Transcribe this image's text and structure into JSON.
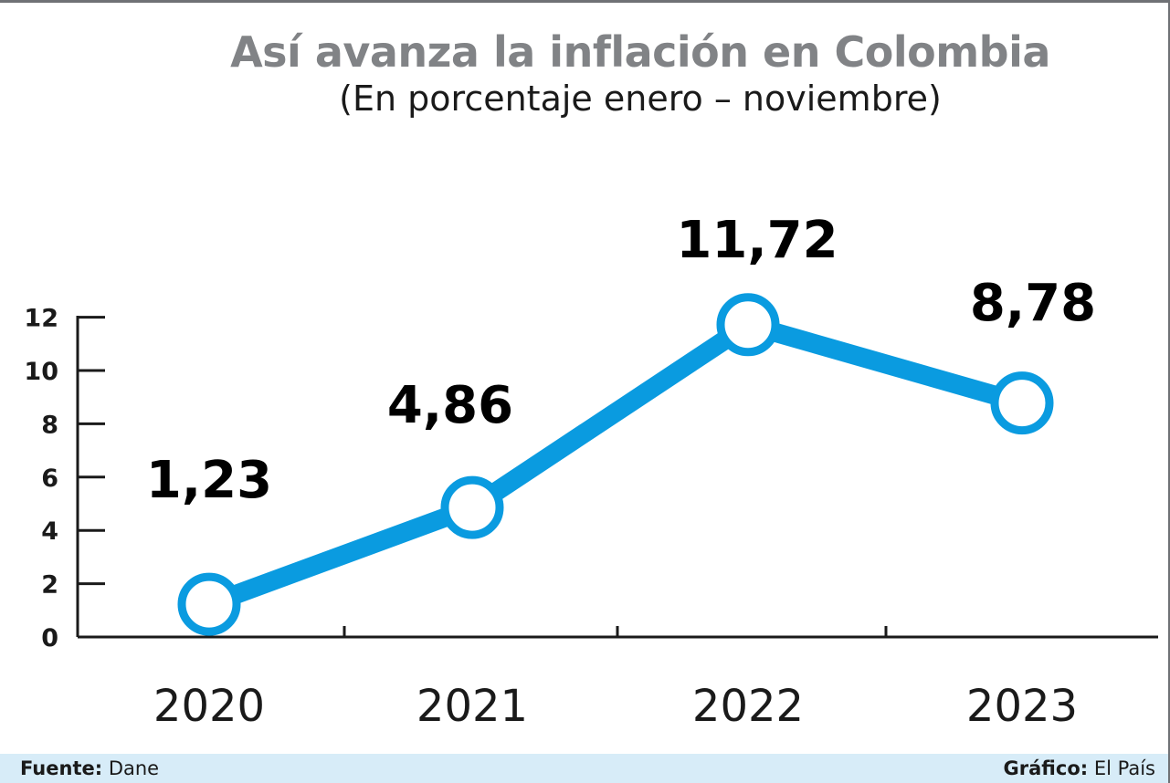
{
  "chart_data": {
    "type": "line",
    "title": "Así avanza la inflación en Colombia",
    "subtitle": "(En porcentaje enero – noviembre)",
    "categories": [
      "2020",
      "2021",
      "2022",
      "2023"
    ],
    "values": [
      1.23,
      4.86,
      11.72,
      8.78
    ],
    "data_labels": [
      "1,23",
      "4,86",
      "11,72",
      "8,78"
    ],
    "y_ticks": [
      "0",
      "2",
      "4",
      "6",
      "8",
      "10",
      "12"
    ],
    "ylim": [
      0,
      12
    ],
    "grid": false,
    "line_color": "#0a9be0"
  },
  "footer": {
    "source_label": "Fuente:",
    "source_value": "Dane",
    "credit_label": "Gráfico:",
    "credit_value": "El País"
  },
  "colors": {
    "title": "#818386",
    "footer_background": "#d7ecf8"
  }
}
